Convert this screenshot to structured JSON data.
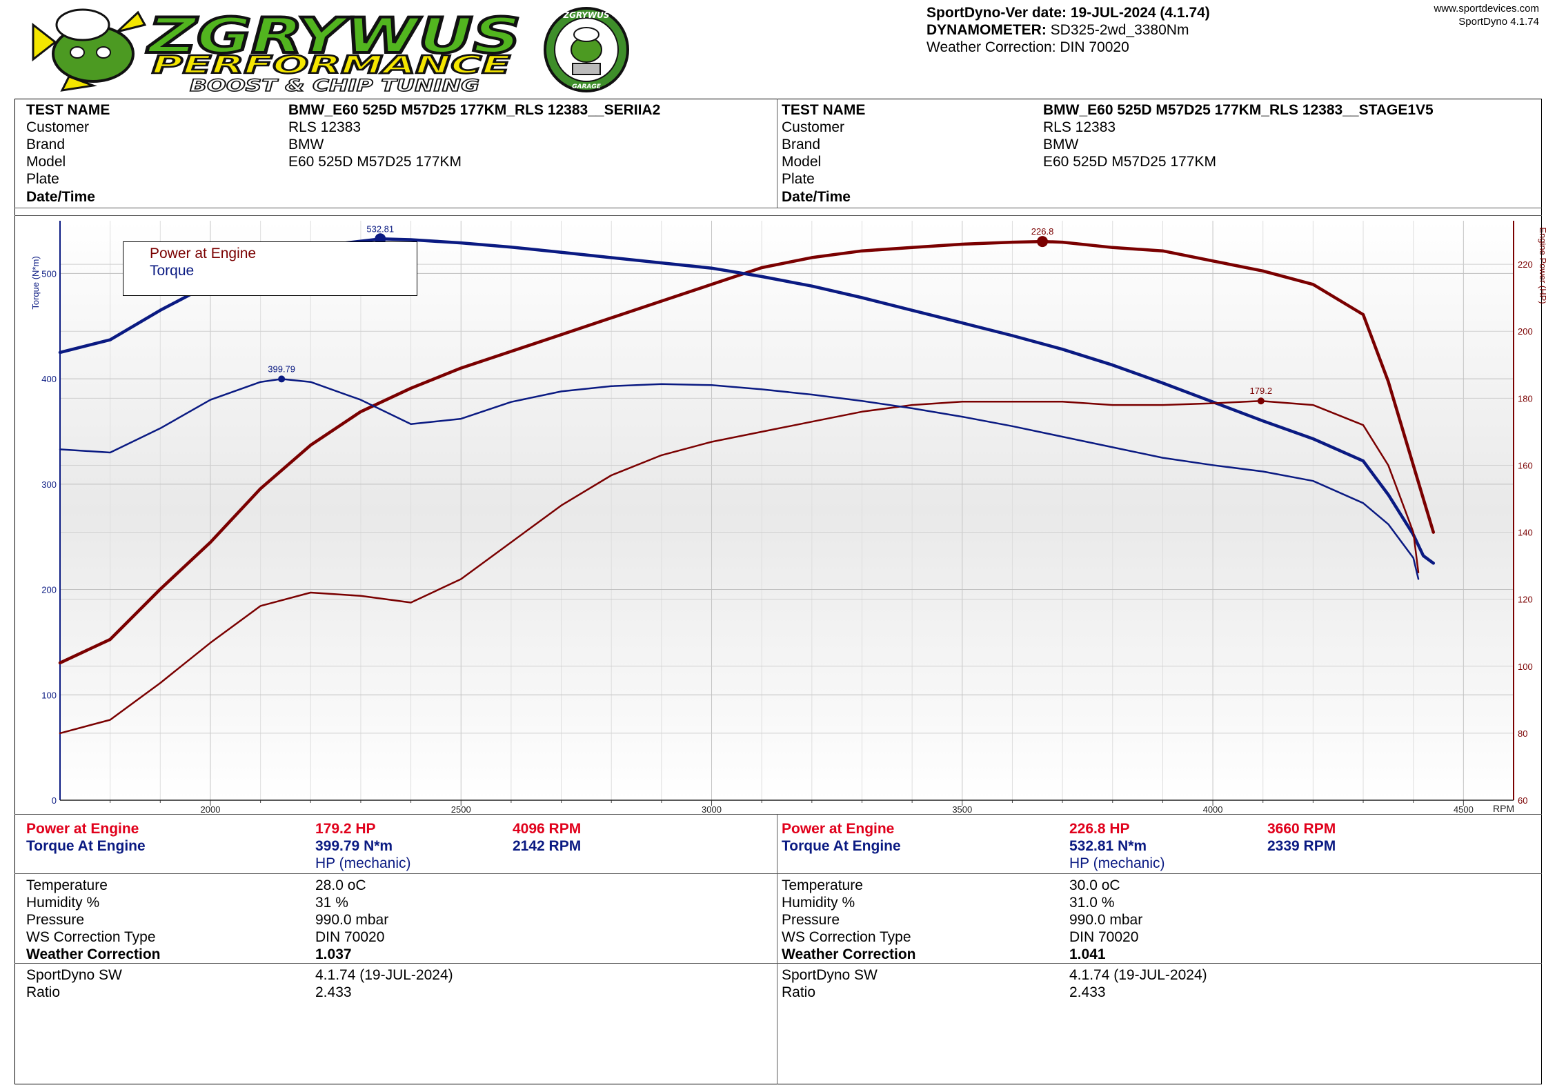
{
  "header": {
    "logo": {
      "text_main": "ZGRYWUS",
      "text_sub": "PERFORMANCE",
      "text_tag": "BOOST & CHIP TUNING",
      "badge_top": "ZGRYWUS",
      "badge_bottom": "GARAGE"
    },
    "version_line": "SportDyno-Ver date: 19-JUL-2024 (4.1.74)",
    "dynamometer_label": "DYNAMOMETER:",
    "dynamometer_value": "SD325-2wd_3380Nm",
    "weather_correction_line": "Weather Correction: DIN 70020",
    "site": "www.sportdevices.com",
    "site_version": "SportDyno 4.1.74"
  },
  "tests": [
    {
      "labels": {
        "test_name": "TEST NAME",
        "customer": "Customer",
        "brand": "Brand",
        "model": "Model",
        "plate": "Plate",
        "datetime": "Date/Time"
      },
      "test_name": "BMW_E60 525D M57D25 177KM_RLS 12383__SERIIA2",
      "customer": "RLS 12383",
      "brand": "BMW",
      "model": "E60 525D M57D25 177KM",
      "plate": "",
      "datetime": "",
      "results": {
        "power_label": "Power at Engine",
        "power_value": "179.2 HP",
        "power_rpm": "4096 RPM",
        "torque_label": "Torque At Engine",
        "torque_value": "399.79 N*m",
        "torque_rpm": "2142 RPM",
        "unit_note": "HP (mechanic)"
      },
      "conditions": {
        "temperature_label": "Temperature",
        "temperature": "28.0 oC",
        "humidity_label": "Humidity %",
        "humidity": "31 %",
        "pressure_label": "Pressure",
        "pressure": "990.0 mbar",
        "ws_type_label": "WS Correction Type",
        "ws_type": "DIN 70020",
        "weather_label": "Weather Correction",
        "weather": "1.037"
      },
      "software": {
        "sw_label": "SportDyno SW",
        "sw": "4.1.74 (19-JUL-2024)",
        "ratio_label": "Ratio",
        "ratio": "2.433"
      }
    },
    {
      "labels": {
        "test_name": "TEST NAME",
        "customer": "Customer",
        "brand": "Brand",
        "model": "Model",
        "plate": "Plate",
        "datetime": "Date/Time"
      },
      "test_name": "BMW_E60 525D M57D25 177KM_RLS 12383__STAGE1V5",
      "customer": "RLS 12383",
      "brand": "BMW",
      "model": "E60 525D M57D25 177KM",
      "plate": "",
      "datetime": "",
      "results": {
        "power_label": "Power at Engine",
        "power_value": "226.8 HP",
        "power_rpm": "3660 RPM",
        "torque_label": "Torque At Engine",
        "torque_value": "532.81 N*m",
        "torque_rpm": "2339 RPM",
        "unit_note": "HP (mechanic)"
      },
      "conditions": {
        "temperature_label": "Temperature",
        "temperature": "30.0 oC",
        "humidity_label": "Humidity %",
        "humidity": "31.0 %",
        "pressure_label": "Pressure",
        "pressure": "990.0 mbar",
        "ws_type_label": "WS Correction Type",
        "ws_type": "DIN 70020",
        "weather_label": "Weather Correction",
        "weather": "1.041"
      },
      "software": {
        "sw_label": "SportDyno SW",
        "sw": "4.1.74 (19-JUL-2024)",
        "ratio_label": "Ratio",
        "ratio": "2.433"
      }
    }
  ],
  "chart_data": {
    "type": "line",
    "x_unit_label": "RPM",
    "xlim": [
      1700,
      4600
    ],
    "x_ticks": [
      2000,
      2500,
      3000,
      3500,
      4000,
      4500
    ],
    "y_left_label": "Torque (N*m)",
    "y_left_lim": [
      0,
      550
    ],
    "y_left_ticks": [
      0,
      100,
      200,
      300,
      400,
      500
    ],
    "y_right_label": "Engine Power (HP)",
    "y_right_lim": [
      60,
      233
    ],
    "y_right_ticks": [
      60,
      80,
      100,
      120,
      140,
      160,
      180,
      200,
      220
    ],
    "grid": true,
    "legend": {
      "position": "top-left",
      "entries": [
        {
          "name": "Power at Engine",
          "color": "#7a0000"
        },
        {
          "name": "Torque",
          "color": "#0a1a82"
        }
      ]
    },
    "series": [
      {
        "name": "Power at Engine",
        "run": "STAGE1V5",
        "axis": "right",
        "color": "#7a0000",
        "width": 4.5,
        "x": [
          1700,
          1800,
          1900,
          2000,
          2100,
          2200,
          2300,
          2400,
          2500,
          2600,
          2700,
          2800,
          2900,
          3000,
          3100,
          3200,
          3300,
          3400,
          3500,
          3600,
          3660,
          3700,
          3800,
          3900,
          4000,
          4100,
          4200,
          4300,
          4350,
          4400,
          4420,
          4440
        ],
        "y": [
          101,
          108,
          123,
          137,
          153,
          166,
          176,
          183,
          189,
          194,
          199,
          204,
          209,
          214,
          219,
          222,
          224,
          225,
          226,
          226.6,
          226.8,
          226.6,
          225,
          224,
          221,
          218,
          214,
          205,
          185,
          160,
          150,
          140
        ],
        "peak": {
          "x": 3660,
          "y": 226.8,
          "label": "226.8"
        }
      },
      {
        "name": "Torque",
        "run": "STAGE1V5",
        "axis": "left",
        "color": "#0a1a82",
        "width": 4.5,
        "x": [
          1700,
          1800,
          1900,
          2000,
          2100,
          2200,
          2339,
          2400,
          2500,
          2600,
          2700,
          2800,
          2900,
          3000,
          3100,
          3200,
          3300,
          3400,
          3500,
          3600,
          3700,
          3800,
          3900,
          4000,
          4100,
          4200,
          4300,
          4350,
          4400,
          4420,
          4440
        ],
        "y": [
          425,
          437,
          465,
          490,
          513,
          525,
          532.8,
          532,
          529,
          525,
          520,
          515,
          510,
          505,
          497,
          488,
          477,
          465,
          453,
          441,
          428,
          413,
          396,
          378,
          360,
          343,
          322,
          290,
          252,
          232,
          225
        ],
        "peak": {
          "x": 2339,
          "y": 532.81,
          "label": "532.81"
        }
      },
      {
        "name": "Power at Engine",
        "run": "SERIIA2",
        "axis": "right",
        "color": "#7a0000",
        "width": 2.5,
        "x": [
          1700,
          1800,
          1900,
          2000,
          2100,
          2200,
          2300,
          2400,
          2500,
          2600,
          2700,
          2800,
          2900,
          3000,
          3100,
          3200,
          3300,
          3400,
          3500,
          3600,
          3700,
          3800,
          3900,
          4000,
          4096,
          4200,
          4300,
          4350,
          4400,
          4410
        ],
        "y": [
          80,
          84,
          95,
          107,
          118,
          122,
          121,
          119,
          126,
          137,
          148,
          157,
          163,
          167,
          170,
          173,
          176,
          178,
          179,
          179,
          179,
          178,
          178,
          178.5,
          179.2,
          178,
          172,
          160,
          140,
          128
        ],
        "peak": {
          "x": 4096,
          "y": 179.2,
          "label": "179.2"
        }
      },
      {
        "name": "Torque",
        "run": "SERIIA2",
        "axis": "left",
        "color": "#0a1a82",
        "width": 2.5,
        "x": [
          1700,
          1800,
          1900,
          2000,
          2100,
          2142,
          2200,
          2300,
          2400,
          2500,
          2600,
          2700,
          2800,
          2900,
          3000,
          3100,
          3200,
          3300,
          3400,
          3500,
          3600,
          3700,
          3800,
          3900,
          4000,
          4100,
          4200,
          4300,
          4350,
          4400,
          4410
        ],
        "y": [
          333,
          330,
          353,
          380,
          397,
          399.79,
          397,
          380,
          357,
          362,
          378,
          388,
          393,
          395,
          394,
          390,
          385,
          379,
          372,
          364,
          355,
          345,
          335,
          325,
          318,
          312,
          303,
          282,
          262,
          230,
          210
        ],
        "peak": {
          "x": 2142,
          "y": 399.79,
          "label": "399.79"
        }
      }
    ]
  }
}
